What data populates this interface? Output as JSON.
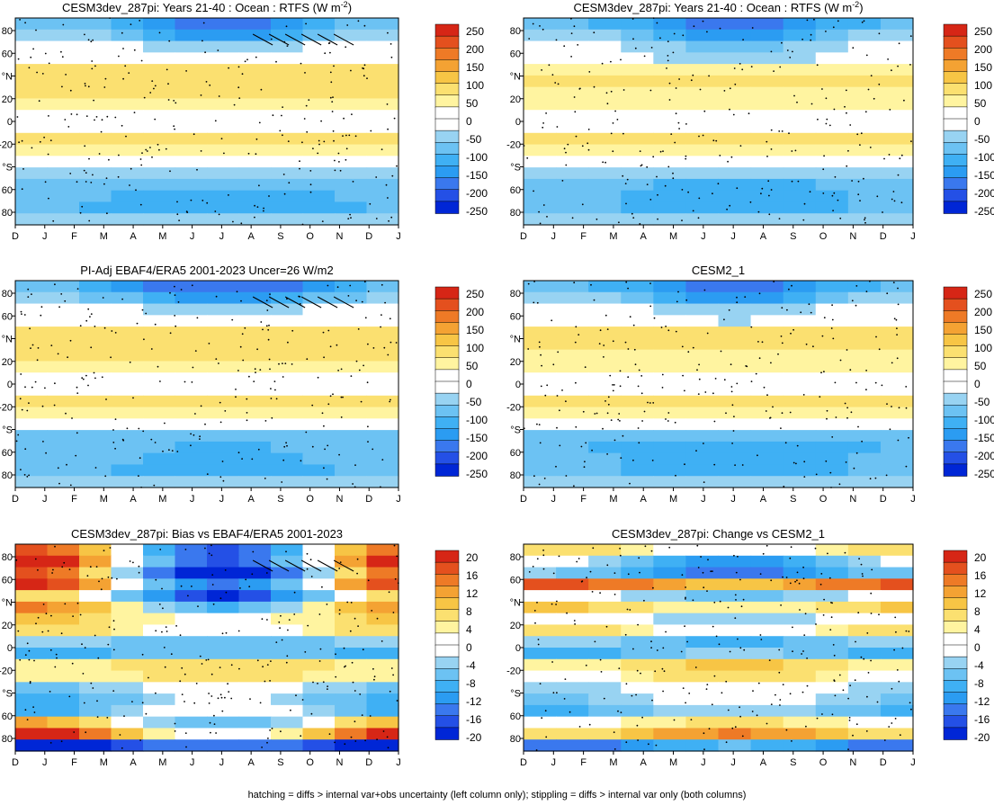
{
  "footnote": "hatching = diffs > internal var+obs uncertainty (left column only); stippling = diffs > internal var only (both columns)",
  "shared_axes": {
    "months": [
      "D",
      "J",
      "F",
      "M",
      "A",
      "M",
      "J",
      "J",
      "A",
      "S",
      "O",
      "N",
      "D",
      "J"
    ],
    "lat_ticks": [
      "80",
      "60",
      "°N",
      "20",
      "0",
      "-20",
      "°S",
      "60",
      "80"
    ]
  },
  "colors": {
    "positive": "#dd2211",
    "negative": "#1744e0",
    "neutral": "#ffffff"
  },
  "chart_data": [
    {
      "type": "heatmap",
      "title": "CESM3dev_287pi: Years 21-40 : Ocean : RTFS (W m-2)",
      "title_main": "CESM3dev_287pi: Years 21-40 : Ocean : RTFS (W m",
      "title_sup": "-2",
      "title_end": ")",
      "colorbar_labels": [
        "250",
        "200",
        "150",
        "100",
        "50",
        "0",
        "-50",
        "-100",
        "-150",
        "-200",
        "-250"
      ],
      "vlim": [
        -270,
        270
      ],
      "overlays": [
        "stippling",
        "hatching"
      ],
      "lat_values": [
        85,
        75,
        65,
        55,
        45,
        35,
        25,
        15,
        5,
        -5,
        -15,
        -25,
        -35,
        -45,
        -55,
        -65,
        -75,
        -85
      ],
      "profile": [
        -130,
        -95,
        -20,
        10,
        95,
        85,
        70,
        60,
        30,
        15,
        80,
        60,
        -10,
        -60,
        -85,
        -105,
        -115,
        -60
      ],
      "seasonal": [
        60,
        60,
        30,
        20,
        0,
        0,
        0,
        0,
        0,
        0,
        0,
        0,
        0,
        0,
        -15,
        -20,
        -20,
        0
      ]
    },
    {
      "type": "heatmap",
      "title": "CESM3dev_287pi: Years 21-40 : Ocean : RTFS (W m-2)",
      "title_main": "CESM3dev_287pi: Years 21-40 : Ocean : RTFS (W m",
      "title_sup": "-2",
      "title_end": ")",
      "colorbar_labels": [
        "250",
        "200",
        "150",
        "100",
        "50",
        "0",
        "-50",
        "-100",
        "-150",
        "-200",
        "-250"
      ],
      "vlim": [
        -270,
        270
      ],
      "overlays": [
        "stippling"
      ],
      "lat_values": [
        85,
        75,
        65,
        55,
        45,
        35,
        25,
        15,
        5,
        -5,
        -15,
        -25,
        -35,
        -45,
        -55,
        -65,
        -75,
        -85
      ],
      "profile": [
        -130,
        -90,
        -40,
        -30,
        60,
        80,
        60,
        55,
        25,
        20,
        70,
        55,
        0,
        -60,
        -95,
        -110,
        -110,
        -50
      ],
      "seasonal": [
        55,
        55,
        35,
        25,
        0,
        0,
        0,
        0,
        0,
        0,
        0,
        0,
        0,
        0,
        -15,
        -20,
        -20,
        0
      ]
    },
    {
      "type": "heatmap",
      "title": "PI-Adj EBAF4/ERA5 2001-2023 Uncer=26 W/m2",
      "title_main": "PI-Adj EBAF4/ERA5 2001-2023 Uncer=26 W/m2",
      "title_sup": "",
      "title_end": "",
      "colorbar_labels": [
        "250",
        "200",
        "150",
        "100",
        "50",
        "0",
        "-50",
        "-100",
        "-150",
        "-200",
        "-250"
      ],
      "vlim": [
        -270,
        270
      ],
      "overlays": [
        "stippling",
        "hatching"
      ],
      "lat_values": [
        85,
        75,
        65,
        55,
        45,
        35,
        25,
        15,
        5,
        -5,
        -15,
        -25,
        -35,
        -45,
        -55,
        -65,
        -75,
        -85
      ],
      "profile": [
        -140,
        -100,
        -20,
        0,
        95,
        85,
        70,
        60,
        30,
        15,
        80,
        60,
        -5,
        -70,
        -90,
        -100,
        -105,
        -60
      ],
      "seasonal": [
        60,
        60,
        35,
        25,
        0,
        0,
        0,
        0,
        0,
        0,
        0,
        0,
        0,
        0,
        -15,
        -20,
        -20,
        0
      ]
    },
    {
      "type": "heatmap",
      "title": "CESM2_1",
      "title_main": "CESM2_1",
      "title_sup": "",
      "title_end": "",
      "colorbar_labels": [
        "250",
        "200",
        "150",
        "100",
        "50",
        "0",
        "-50",
        "-100",
        "-150",
        "-200",
        "-250"
      ],
      "vlim": [
        -270,
        270
      ],
      "overlays": [
        "stippling"
      ],
      "lat_values": [
        85,
        75,
        65,
        55,
        45,
        35,
        25,
        15,
        5,
        -5,
        -15,
        -25,
        -35,
        -45,
        -55,
        -65,
        -75,
        -85
      ],
      "profile": [
        -130,
        -95,
        -20,
        -10,
        80,
        80,
        65,
        55,
        25,
        20,
        75,
        55,
        -5,
        -70,
        -110,
        -110,
        -110,
        -50
      ],
      "seasonal": [
        55,
        55,
        35,
        25,
        0,
        0,
        0,
        0,
        0,
        0,
        0,
        0,
        0,
        0,
        -15,
        -20,
        -20,
        0
      ]
    },
    {
      "type": "heatmap",
      "title": "CESM3dev_287pi: Bias vs EBAF4/ERA5 2001-2023",
      "title_main": "CESM3dev_287pi: Bias vs EBAF4/ERA5 2001-2023",
      "title_sup": "",
      "title_end": "",
      "colorbar_labels": [
        "20",
        "16",
        "12",
        "8",
        "4",
        "0",
        "-4",
        "-8",
        "-12",
        "-16",
        "-20"
      ],
      "vlim": [
        -22,
        22
      ],
      "overlays": [
        "stippling",
        "hatching"
      ],
      "lat_values": [
        85,
        75,
        65,
        55,
        45,
        35,
        25,
        15,
        5,
        -5,
        -15,
        -25,
        -35,
        -45,
        -55,
        -65,
        -75,
        -85
      ],
      "profile": [
        0,
        2,
        -4,
        2,
        -6,
        3,
        5,
        4,
        -6,
        -8,
        6,
        5,
        -3,
        -6,
        -4,
        2,
        10,
        -18
      ],
      "seasonal": [
        18,
        20,
        22,
        18,
        14,
        12,
        4,
        3,
        2,
        2,
        2,
        2,
        3,
        4,
        6,
        -10,
        -12,
        4
      ]
    },
    {
      "type": "heatmap",
      "title": "CESM3dev_287pi: Change vs CESM2_1",
      "title_main": "CESM3dev_287pi: Change vs CESM2_1",
      "title_sup": "",
      "title_end": "",
      "colorbar_labels": [
        "20",
        "16",
        "12",
        "8",
        "4",
        "0",
        "-4",
        "-8",
        "-12",
        "-16",
        "-20"
      ],
      "vlim": [
        -22,
        22
      ],
      "overlays": [
        "stippling"
      ],
      "lat_values": [
        85,
        75,
        65,
        55,
        45,
        35,
        25,
        15,
        5,
        -5,
        -15,
        -25,
        -35,
        -45,
        -55,
        -65,
        -75,
        -85
      ],
      "profile": [
        3,
        -6,
        -10,
        14,
        -4,
        6,
        -2,
        4,
        -6,
        -8,
        6,
        4,
        -2,
        -4,
        -6,
        3,
        10,
        -12
      ],
      "seasonal": [
        5,
        6,
        5,
        4,
        3,
        3,
        3,
        3,
        3,
        3,
        3,
        3,
        3,
        3,
        3,
        4,
        4,
        4
      ]
    }
  ]
}
